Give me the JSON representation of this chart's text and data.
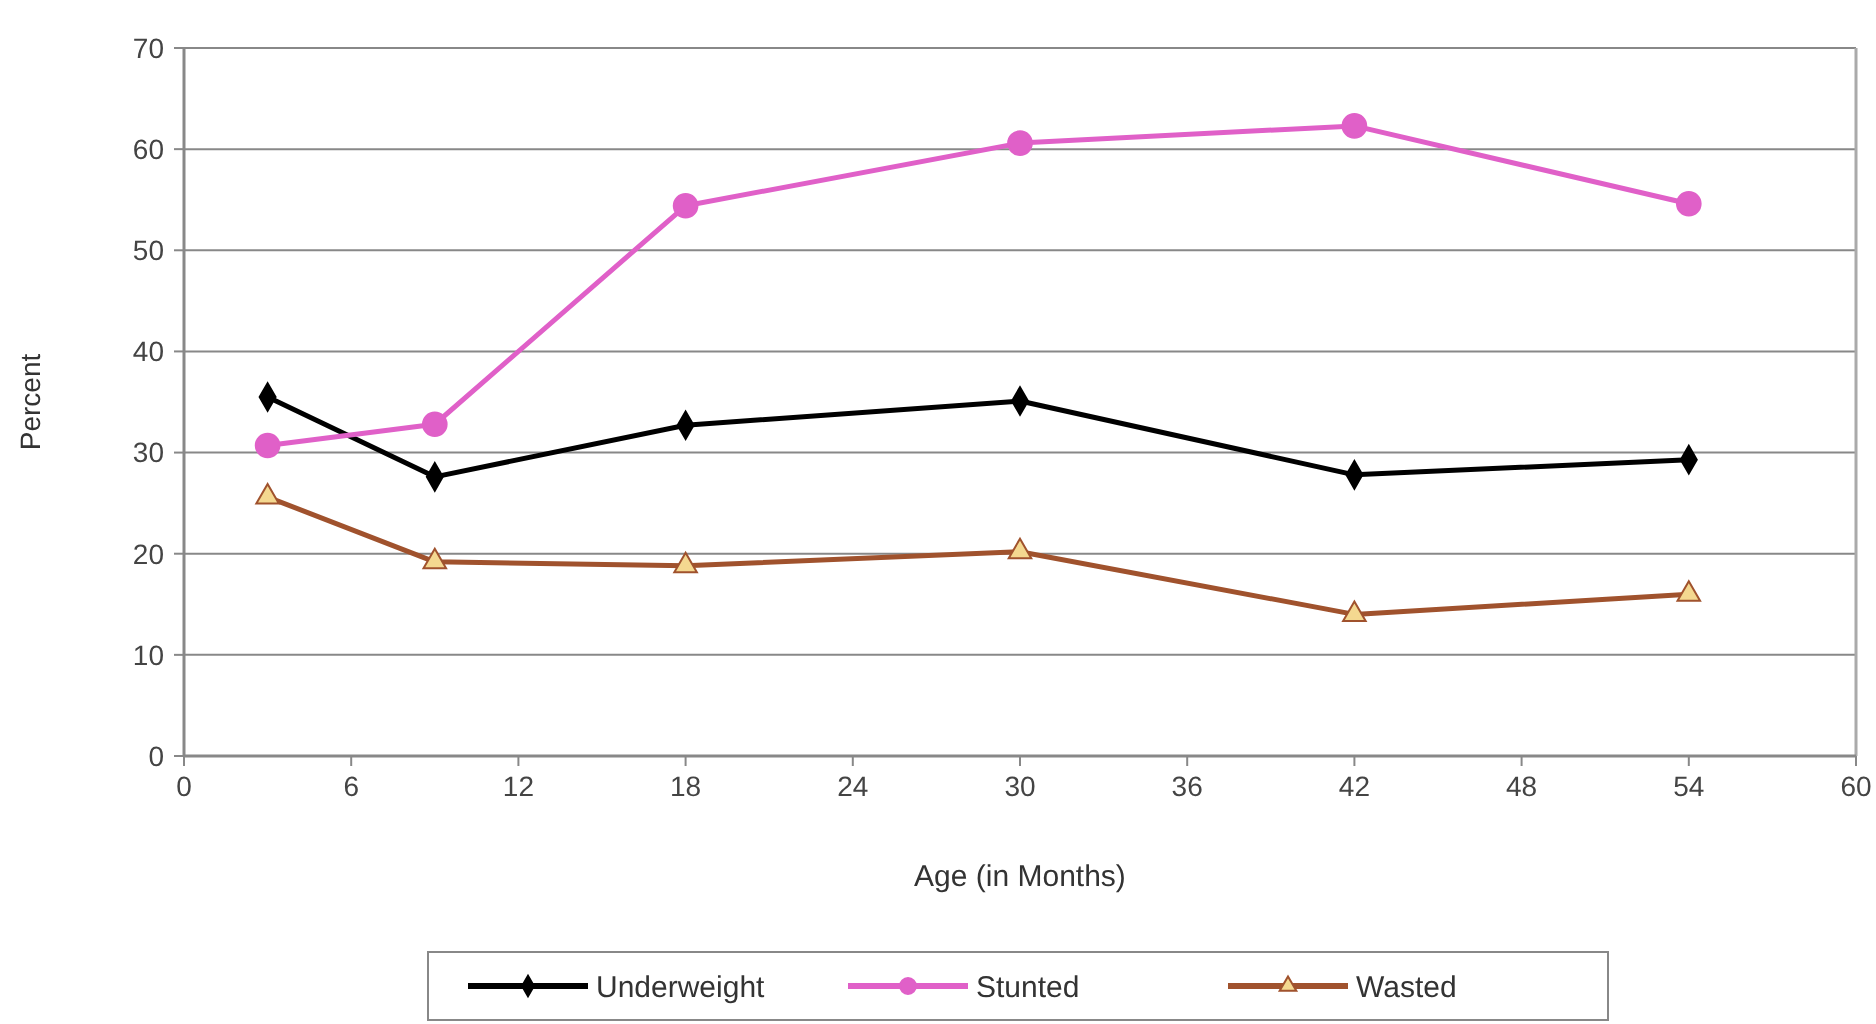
{
  "chart_data": {
    "type": "line",
    "xlabel": "Age (in Months)",
    "ylabel": "Percent",
    "x": [
      3,
      9,
      18,
      30,
      42,
      54
    ],
    "series": [
      {
        "name": "Underweight",
        "color": "#000000",
        "marker": "diamond",
        "values": [
          35.5,
          27.6,
          32.7,
          35.1,
          27.8,
          29.3
        ]
      },
      {
        "name": "Stunted",
        "color": "#e060c8",
        "marker": "circle",
        "values": [
          30.7,
          32.8,
          54.4,
          60.6,
          62.3,
          54.6
        ]
      },
      {
        "name": "Wasted",
        "color": "#a0522d",
        "marker": "triangle",
        "values": [
          25.6,
          19.2,
          18.8,
          20.2,
          14.0,
          16.0
        ]
      }
    ],
    "xlim": [
      0,
      60
    ],
    "xticks": [
      0,
      6,
      12,
      18,
      24,
      30,
      36,
      42,
      48,
      54,
      60
    ],
    "ylim": [
      0,
      70
    ],
    "yticks": [
      0,
      10,
      20,
      30,
      40,
      50,
      60,
      70
    ],
    "grid": "y",
    "legend": "bottom",
    "line_style": "solid"
  }
}
